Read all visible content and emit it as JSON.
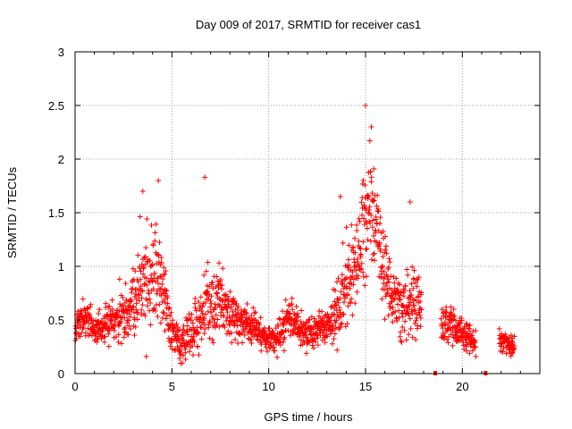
{
  "chart_data": {
    "type": "scatter",
    "title": "Day 009 of 2017, SRMTID for receiver cas1",
    "xlabel": "GPS time / hours",
    "ylabel": "SRMTID / TECUs",
    "xlim": [
      0,
      24
    ],
    "ylim": [
      0,
      3
    ],
    "xticks": [
      0,
      5,
      10,
      15,
      20
    ],
    "yticks": [
      0,
      0.5,
      1,
      1.5,
      2,
      2.5,
      3
    ],
    "grid": true,
    "marker": "+",
    "colors": {
      "points": "#ff0000",
      "axes": "#000000",
      "grid": "#a0a0a0"
    },
    "series": [
      {
        "name": "SRMTID",
        "envelope_hours": [
          0,
          0.5,
          1,
          1.5,
          2,
          2.5,
          3,
          3.3,
          3.6,
          4,
          4.3,
          4.7,
          5,
          5.5,
          6,
          6.5,
          7,
          7.5,
          8,
          8.5,
          9,
          9.5,
          10,
          10.5,
          11,
          11.5,
          12,
          12.5,
          13,
          13.5,
          14,
          14.5,
          15,
          15.3,
          15.7,
          16,
          16.5,
          17,
          17.5,
          18,
          18.5,
          19,
          19.5,
          20,
          20.5,
          21,
          21.5,
          22,
          22.7
        ],
        "envelope_mean_tecu": [
          0.4,
          0.55,
          0.4,
          0.45,
          0.5,
          0.55,
          0.65,
          0.85,
          0.95,
          0.85,
          0.9,
          0.6,
          0.4,
          0.25,
          0.4,
          0.5,
          0.7,
          0.65,
          0.6,
          0.5,
          0.45,
          0.4,
          0.3,
          0.35,
          0.5,
          0.45,
          0.35,
          0.4,
          0.45,
          0.55,
          0.85,
          0.95,
          1.35,
          1.65,
          1.2,
          0.9,
          0.7,
          0.6,
          0.7,
          0.6,
          0.5,
          0.45,
          0.45,
          0.35,
          0.3,
          0.25,
          0.3,
          0.3,
          0.25
        ],
        "envelope_spread_tecu": [
          0.12,
          0.15,
          0.15,
          0.18,
          0.2,
          0.25,
          0.3,
          0.4,
          0.45,
          0.45,
          0.4,
          0.25,
          0.18,
          0.15,
          0.2,
          0.3,
          0.35,
          0.3,
          0.25,
          0.18,
          0.15,
          0.15,
          0.12,
          0.15,
          0.2,
          0.18,
          0.12,
          0.15,
          0.18,
          0.3,
          0.4,
          0.4,
          0.5,
          0.5,
          0.4,
          0.3,
          0.25,
          0.25,
          0.3,
          0.25,
          0.2,
          0.15,
          0.15,
          0.12,
          0.12,
          0.1,
          0.12,
          0.12,
          0.1
        ],
        "gaps_hours": [
          [
            17.9,
            18.9
          ],
          [
            20.7,
            21.9
          ]
        ],
        "extremes": [
          {
            "x": 15.0,
            "y": 2.5
          },
          {
            "x": 6.7,
            "y": 1.83
          },
          {
            "x": 4.3,
            "y": 1.8
          },
          {
            "x": 3.5,
            "y": 1.7
          },
          {
            "x": 15.3,
            "y": 2.3
          },
          {
            "x": 13.7,
            "y": 1.65
          },
          {
            "x": 17.3,
            "y": 1.6
          }
        ]
      }
    ],
    "axis_markers": [
      {
        "x": 18.6,
        "y": 0
      },
      {
        "x": 21.2,
        "y": 0
      }
    ]
  }
}
